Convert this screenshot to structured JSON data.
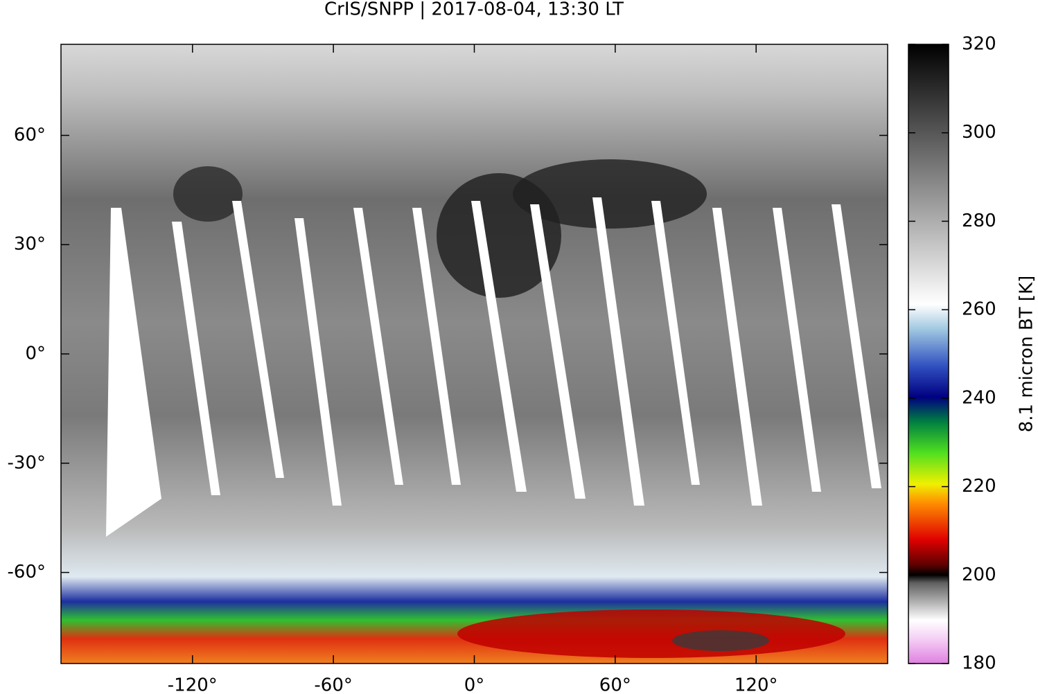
{
  "chart_data": {
    "type": "map",
    "title": "CrIS/SNPP | 2017-08-04, 13:30 LT",
    "xlim": [
      -176,
      176
    ],
    "ylim": [
      -85,
      85
    ],
    "xticks": [
      {
        "value": -120,
        "label": "-120°"
      },
      {
        "value": -60,
        "label": "-60°"
      },
      {
        "value": 0,
        "label": "0°"
      },
      {
        "value": 60,
        "label": "60°"
      },
      {
        "value": 120,
        "label": "120°"
      }
    ],
    "yticks": [
      {
        "value": -60,
        "label": "-60°"
      },
      {
        "value": -30,
        "label": "-30°"
      },
      {
        "value": 0,
        "label": "0°"
      },
      {
        "value": 30,
        "label": "30°"
      },
      {
        "value": 60,
        "label": "60°"
      }
    ],
    "colorbar": {
      "label": "8.1 micron BT [K]",
      "clim": [
        180,
        320
      ],
      "ticks": [
        180,
        200,
        220,
        240,
        260,
        280,
        300,
        320
      ]
    }
  }
}
